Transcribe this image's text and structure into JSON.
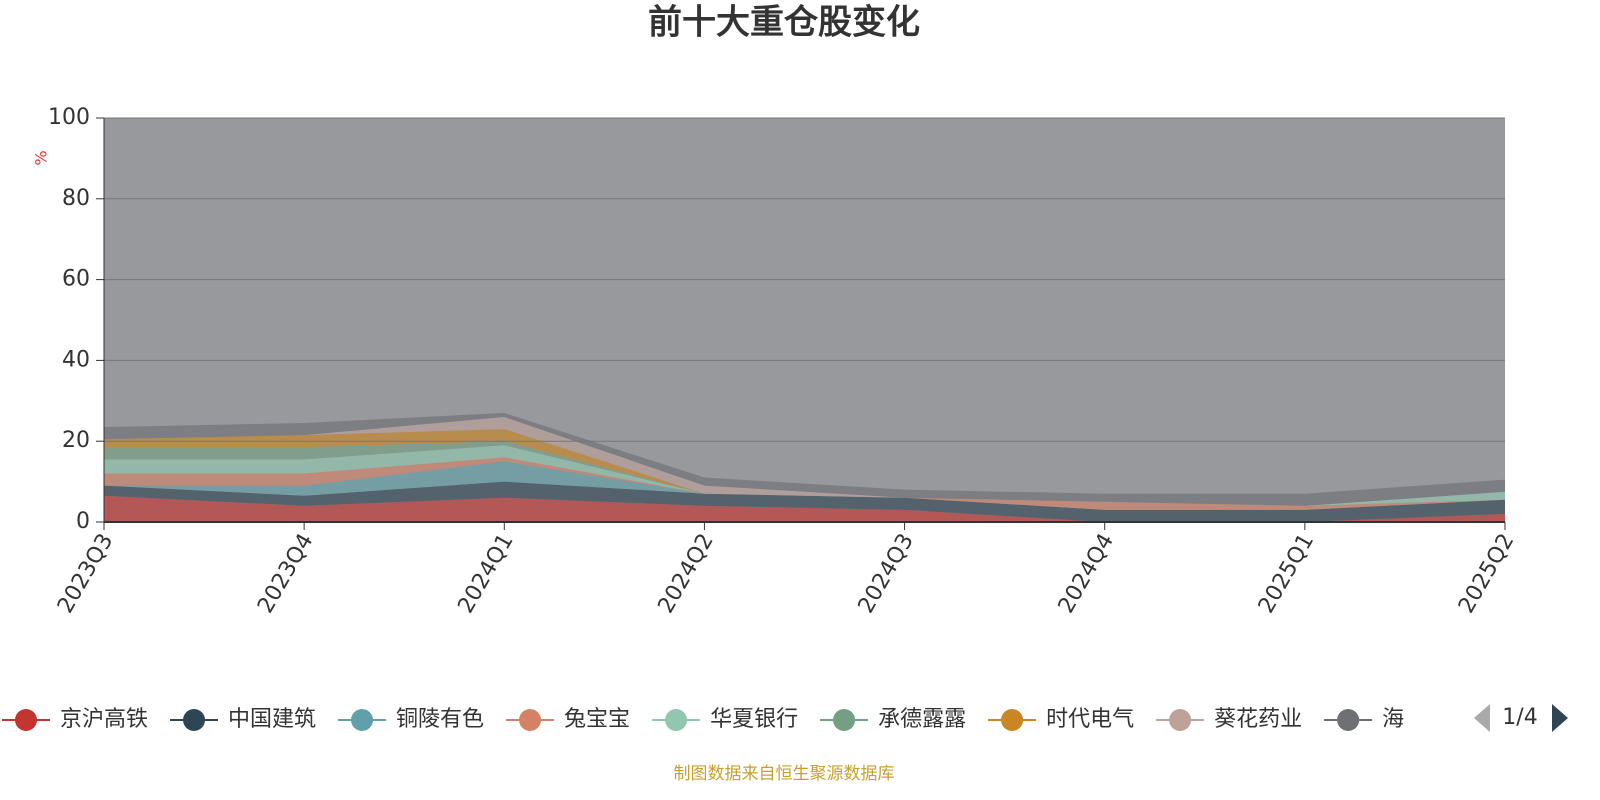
{
  "chart_data": {
    "type": "stacked_area",
    "title": "前十大重仓股变化",
    "y_label": "%",
    "categories": [
      "2023Q3",
      "2023Q4",
      "2024Q1",
      "2024Q2",
      "2024Q3",
      "2024Q4",
      "2025Q1",
      "2025Q2"
    ],
    "series": [
      {
        "name": "京沪高铁",
        "color": "#c23531",
        "values": [
          6.5,
          4,
          6,
          4,
          3,
          0,
          0,
          2
        ]
      },
      {
        "name": "中国建筑",
        "color": "#2f4554",
        "values": [
          2.5,
          2.5,
          4,
          3,
          3,
          3,
          3,
          3.5
        ]
      },
      {
        "name": "铜陵有色",
        "color": "#61a0a8",
        "values": [
          0,
          2.5,
          5,
          0,
          0,
          0,
          0,
          0
        ]
      },
      {
        "name": "兔宝宝",
        "color": "#d48265",
        "values": [
          3,
          3,
          1,
          0,
          0,
          2,
          1,
          0
        ]
      },
      {
        "name": "华夏银行",
        "color": "#91c7ae",
        "values": [
          3.5,
          3.5,
          3,
          0,
          0,
          0,
          0,
          2
        ]
      },
      {
        "name": "承德露露",
        "color": "#749f83",
        "values": [
          3,
          3,
          1,
          0,
          0,
          0,
          0,
          0
        ]
      },
      {
        "name": "时代电气",
        "color": "#ca8622",
        "values": [
          2,
          3,
          3,
          0,
          0,
          0,
          0,
          0
        ]
      },
      {
        "name": "葵花药业",
        "color": "#bda29a",
        "values": [
          0,
          0,
          3,
          2,
          0,
          0,
          0,
          0
        ]
      },
      {
        "name": "海",
        "color": "#6e7074",
        "values": [
          3,
          3,
          1,
          2,
          2,
          2,
          3,
          3
        ]
      }
    ],
    "ylim": [
      0,
      100
    ],
    "yticks": [
      0,
      20,
      40,
      60,
      80,
      100
    ],
    "grid": true,
    "legend_page": "1/4",
    "source": "制图数据来自恒生聚源数据库"
  }
}
